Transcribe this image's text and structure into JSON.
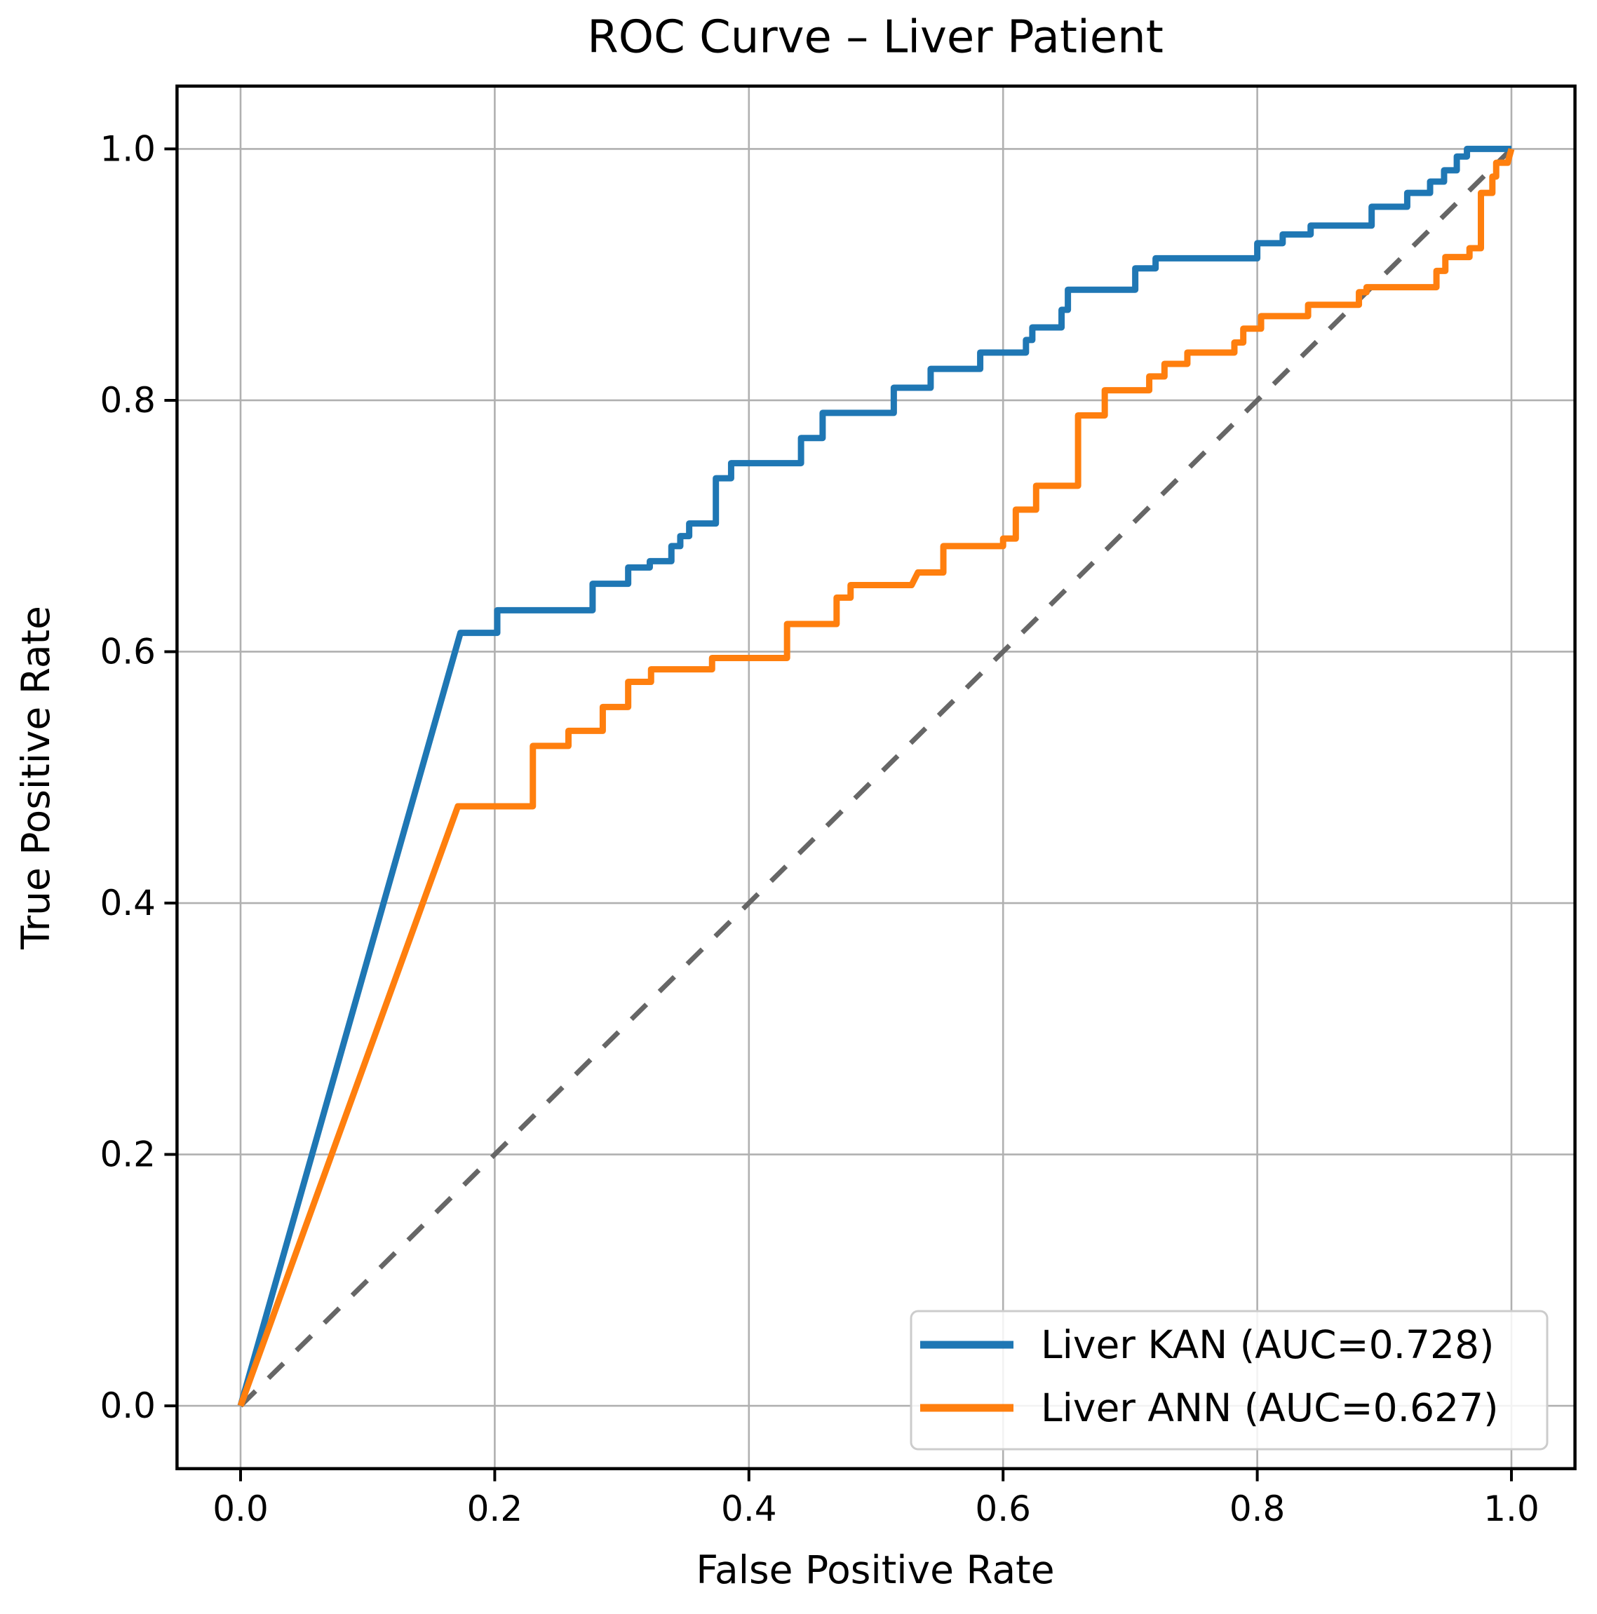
{
  "figure": {
    "title": "ROC Curve – Liver Patient",
    "xlabel": "False Positive Rate",
    "ylabel": "True Positive Rate"
  },
  "legend": {
    "position": "lower right",
    "entries": [
      {
        "label": "Liver KAN (AUC=0.728)",
        "color": "#1f77b4"
      },
      {
        "label": "Liver ANN (AUC=0.627)",
        "color": "#ff7f0e"
      }
    ]
  },
  "chart_data": {
    "type": "line",
    "title": "ROC Curve – Liver Patient",
    "xlabel": "False Positive Rate",
    "ylabel": "True Positive Rate",
    "xlim": [
      -0.05,
      1.05
    ],
    "ylim": [
      -0.05,
      1.05
    ],
    "grid": true,
    "grid_color": "#b0b0b0",
    "background": "#ffffff",
    "legend_position": "lower right",
    "x_ticks": {
      "values": [
        0.0,
        0.2,
        0.4,
        0.6,
        0.8,
        1.0
      ],
      "labels": [
        "0.0",
        "0.2",
        "0.4",
        "0.6",
        "0.8",
        "1.0"
      ]
    },
    "y_ticks": {
      "values": [
        0.0,
        0.2,
        0.4,
        0.6,
        0.8,
        1.0
      ],
      "labels": [
        "0.0",
        "0.2",
        "0.4",
        "0.6",
        "0.8",
        "1.0"
      ]
    },
    "reference_line": {
      "name": "chance-diagonal",
      "style": "dashed",
      "color": "#666666",
      "points": [
        [
          0.0,
          0.0
        ],
        [
          1.0,
          1.0
        ]
      ]
    },
    "series": [
      {
        "name": "Liver KAN (AUC=0.728)",
        "auc": 0.728,
        "color": "#1f77b4",
        "points": [
          [
            0.0,
            0.0
          ],
          [
            0.173,
            0.615
          ],
          [
            0.202,
            0.615
          ],
          [
            0.202,
            0.633
          ],
          [
            0.277,
            0.633
          ],
          [
            0.277,
            0.654
          ],
          [
            0.305,
            0.654
          ],
          [
            0.305,
            0.667
          ],
          [
            0.322,
            0.667
          ],
          [
            0.322,
            0.672
          ],
          [
            0.339,
            0.672
          ],
          [
            0.339,
            0.684
          ],
          [
            0.346,
            0.684
          ],
          [
            0.346,
            0.692
          ],
          [
            0.353,
            0.692
          ],
          [
            0.353,
            0.702
          ],
          [
            0.374,
            0.702
          ],
          [
            0.374,
            0.738
          ],
          [
            0.386,
            0.738
          ],
          [
            0.386,
            0.75
          ],
          [
            0.441,
            0.75
          ],
          [
            0.441,
            0.77
          ],
          [
            0.458,
            0.77
          ],
          [
            0.458,
            0.79
          ],
          [
            0.514,
            0.79
          ],
          [
            0.514,
            0.81
          ],
          [
            0.543,
            0.81
          ],
          [
            0.543,
            0.825
          ],
          [
            0.582,
            0.825
          ],
          [
            0.582,
            0.838
          ],
          [
            0.618,
            0.838
          ],
          [
            0.618,
            0.848
          ],
          [
            0.623,
            0.848
          ],
          [
            0.623,
            0.858
          ],
          [
            0.646,
            0.858
          ],
          [
            0.646,
            0.872
          ],
          [
            0.651,
            0.872
          ],
          [
            0.651,
            0.888
          ],
          [
            0.704,
            0.888
          ],
          [
            0.704,
            0.905
          ],
          [
            0.72,
            0.905
          ],
          [
            0.72,
            0.913
          ],
          [
            0.8,
            0.913
          ],
          [
            0.8,
            0.925
          ],
          [
            0.82,
            0.925
          ],
          [
            0.82,
            0.932
          ],
          [
            0.842,
            0.932
          ],
          [
            0.842,
            0.939
          ],
          [
            0.89,
            0.939
          ],
          [
            0.89,
            0.954
          ],
          [
            0.918,
            0.954
          ],
          [
            0.918,
            0.965
          ],
          [
            0.936,
            0.965
          ],
          [
            0.936,
            0.974
          ],
          [
            0.947,
            0.974
          ],
          [
            0.947,
            0.983
          ],
          [
            0.957,
            0.983
          ],
          [
            0.957,
            0.994
          ],
          [
            0.965,
            0.994
          ],
          [
            0.965,
            1.0
          ],
          [
            1.0,
            1.0
          ]
        ]
      },
      {
        "name": "Liver ANN (AUC=0.627)",
        "auc": 0.627,
        "color": "#ff7f0e",
        "points": [
          [
            0.0,
            0.0
          ],
          [
            0.171,
            0.477
          ],
          [
            0.23,
            0.477
          ],
          [
            0.23,
            0.525
          ],
          [
            0.258,
            0.525
          ],
          [
            0.258,
            0.537
          ],
          [
            0.285,
            0.537
          ],
          [
            0.285,
            0.556
          ],
          [
            0.305,
            0.556
          ],
          [
            0.305,
            0.576
          ],
          [
            0.323,
            0.576
          ],
          [
            0.323,
            0.586
          ],
          [
            0.371,
            0.586
          ],
          [
            0.371,
            0.595
          ],
          [
            0.43,
            0.595
          ],
          [
            0.43,
            0.622
          ],
          [
            0.469,
            0.622
          ],
          [
            0.469,
            0.643
          ],
          [
            0.48,
            0.643
          ],
          [
            0.48,
            0.653
          ],
          [
            0.528,
            0.653
          ],
          [
            0.533,
            0.663
          ],
          [
            0.553,
            0.663
          ],
          [
            0.553,
            0.684
          ],
          [
            0.6,
            0.684
          ],
          [
            0.6,
            0.69
          ],
          [
            0.61,
            0.69
          ],
          [
            0.61,
            0.713
          ],
          [
            0.626,
            0.713
          ],
          [
            0.626,
            0.732
          ],
          [
            0.659,
            0.732
          ],
          [
            0.659,
            0.788
          ],
          [
            0.68,
            0.788
          ],
          [
            0.68,
            0.808
          ],
          [
            0.715,
            0.808
          ],
          [
            0.715,
            0.819
          ],
          [
            0.727,
            0.819
          ],
          [
            0.727,
            0.829
          ],
          [
            0.745,
            0.829
          ],
          [
            0.745,
            0.838
          ],
          [
            0.782,
            0.838
          ],
          [
            0.782,
            0.846
          ],
          [
            0.789,
            0.846
          ],
          [
            0.789,
            0.857
          ],
          [
            0.803,
            0.857
          ],
          [
            0.803,
            0.867
          ],
          [
            0.84,
            0.867
          ],
          [
            0.84,
            0.876
          ],
          [
            0.88,
            0.876
          ],
          [
            0.88,
            0.886
          ],
          [
            0.886,
            0.886
          ],
          [
            0.886,
            0.89
          ],
          [
            0.941,
            0.89
          ],
          [
            0.941,
            0.903
          ],
          [
            0.948,
            0.903
          ],
          [
            0.948,
            0.914
          ],
          [
            0.967,
            0.914
          ],
          [
            0.967,
            0.921
          ],
          [
            0.976,
            0.921
          ],
          [
            0.976,
            0.965
          ],
          [
            0.985,
            0.965
          ],
          [
            0.985,
            0.978
          ],
          [
            0.988,
            0.978
          ],
          [
            0.988,
            0.989
          ],
          [
            0.997,
            0.989
          ],
          [
            1.0,
            1.0
          ]
        ]
      }
    ]
  }
}
